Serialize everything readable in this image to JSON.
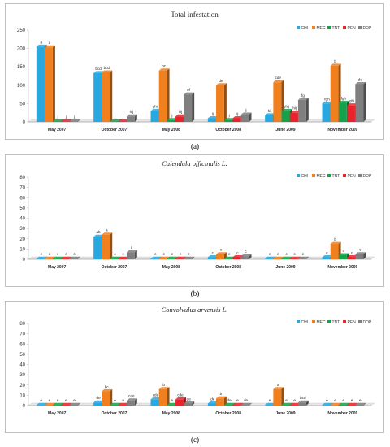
{
  "series_names": [
    "CHI",
    "MEC",
    "TNT",
    "PEN",
    "DOP"
  ],
  "series_colors": [
    "#29a8e0",
    "#f07f1e",
    "#16a24a",
    "#e8232b",
    "#7f7f7f"
  ],
  "charts": [
    {
      "caption": "(a)",
      "chart_data": {
        "type": "bar",
        "title": "Total infestation",
        "title_italic": false,
        "categories": [
          "May 2007",
          "October 2007",
          "May 2008",
          "October 2008",
          "June 2009",
          "November 2009"
        ],
        "ylim": [
          0,
          250
        ],
        "yticks": [
          0,
          50,
          100,
          150,
          200,
          250
        ],
        "grid": false,
        "legend": "top-right",
        "series": [
          {
            "name": "CHI",
            "values": [
              205,
              133,
              30,
              10,
              18,
              50
            ],
            "labels": [
              "a",
              "bcd",
              "ghij",
              "ij",
              "hij",
              "fgh"
            ]
          },
          {
            "name": "MEC",
            "values": [
              203,
              135,
              140,
              100,
              108,
              153
            ],
            "labels": [
              "a",
              "bcd",
              "bc",
              "de",
              "cde",
              "b"
            ]
          },
          {
            "name": "TNT",
            "values": [
              0,
              0,
              5,
              5,
              30,
              52
            ],
            "labels": [
              "j",
              "j",
              "j",
              "j",
              "ghij",
              "fgh"
            ]
          },
          {
            "name": "PEN",
            "values": [
              0,
              0,
              15,
              10,
              25,
              45
            ],
            "labels": [
              "j",
              "j",
              "hij",
              "ij",
              "hij",
              "ghi"
            ]
          },
          {
            "name": "DOP",
            "values": [
              0,
              15,
              75,
              20,
              60,
              103
            ],
            "labels": [
              "j",
              "hij",
              "ef",
              "ij",
              "fg",
              "de"
            ]
          }
        ]
      }
    },
    {
      "caption": "(b)",
      "chart_data": {
        "type": "bar",
        "title": "Calendula officinalis L.",
        "title_italic": true,
        "categories": [
          "May 2007",
          "October 2007",
          "May 2008",
          "October 2008",
          "June 2009",
          "November 2009"
        ],
        "ylim": [
          0,
          80
        ],
        "yticks": [
          0,
          10,
          20,
          30,
          40,
          50,
          60,
          70,
          80
        ],
        "grid": false,
        "legend": "top-right",
        "series": [
          {
            "name": "CHI",
            "values": [
              0,
              22,
              0,
              2,
              0,
              2
            ],
            "labels": [
              "c",
              "ab",
              "c",
              "c",
              "c",
              "c"
            ]
          },
          {
            "name": "MEC",
            "values": [
              0,
              24,
              0,
              5,
              0,
              15
            ],
            "labels": [
              "c",
              "a",
              "c",
              "c",
              "c",
              "b"
            ]
          },
          {
            "name": "TNT",
            "values": [
              0,
              0,
              0,
              0,
              0,
              4
            ],
            "labels": [
              "c",
              "c",
              "c",
              "c",
              "c",
              "c"
            ]
          },
          {
            "name": "PEN",
            "values": [
              0,
              0,
              0,
              2,
              0,
              2
            ],
            "labels": [
              "c",
              "c",
              "c",
              "c",
              "c",
              "c"
            ]
          },
          {
            "name": "DOP",
            "values": [
              0,
              7,
              0,
              3,
              0,
              5
            ],
            "labels": [
              "c",
              "c",
              "c",
              "c",
              "c",
              "c"
            ]
          }
        ]
      }
    },
    {
      "caption": "(c)",
      "chart_data": {
        "type": "bar",
        "title": "Convolvulus arvensis L.",
        "title_italic": true,
        "categories": [
          "May 2007",
          "October 2007",
          "May 2008",
          "October 2008",
          "June 2009",
          "November 2009"
        ],
        "ylim": [
          0,
          80
        ],
        "yticks": [
          0,
          10,
          20,
          30,
          40,
          50,
          60,
          70,
          80
        ],
        "grid": false,
        "legend": "top-right",
        "series": [
          {
            "name": "CHI",
            "values": [
              0,
              3,
              6,
              2,
              0,
              0
            ],
            "labels": [
              "e",
              "de",
              "cde",
              "de",
              "e",
              "e"
            ]
          },
          {
            "name": "MEC",
            "values": [
              0,
              14,
              16,
              7,
              16,
              0
            ],
            "labels": [
              "e",
              "bc",
              "b",
              "b",
              "a",
              "e"
            ]
          },
          {
            "name": "TNT",
            "values": [
              0,
              0,
              0,
              0,
              0,
              0
            ],
            "labels": [
              "e",
              "e",
              "e",
              "de",
              "e",
              "e"
            ]
          },
          {
            "name": "PEN",
            "values": [
              0,
              0,
              6,
              0,
              0,
              0
            ],
            "labels": [
              "e",
              "e",
              "cde",
              "e",
              "e",
              "e"
            ]
          },
          {
            "name": "DOP",
            "values": [
              0,
              5,
              2,
              0,
              3,
              0
            ],
            "labels": [
              "e",
              "cde",
              "de",
              "de",
              "bcd",
              "e"
            ]
          }
        ]
      }
    }
  ]
}
